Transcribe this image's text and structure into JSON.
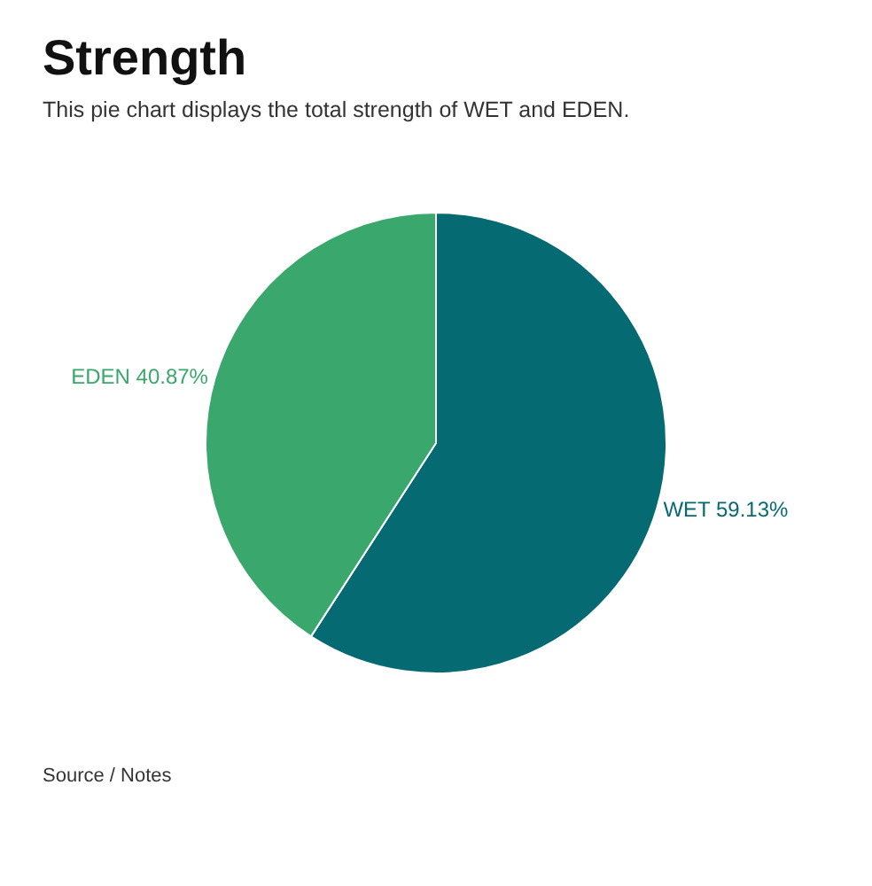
{
  "chart_data": {
    "type": "pie",
    "title": "Strength",
    "subtitle": "This pie chart displays the total strength of WET and EDEN.",
    "categories": [
      "WET",
      "EDEN"
    ],
    "values": [
      59.13,
      40.87
    ],
    "colors": [
      "#066a73",
      "#3aa76d"
    ],
    "value_labels": [
      "59.13%",
      "40.87%"
    ],
    "annotations": [
      "Source / Notes"
    ]
  }
}
